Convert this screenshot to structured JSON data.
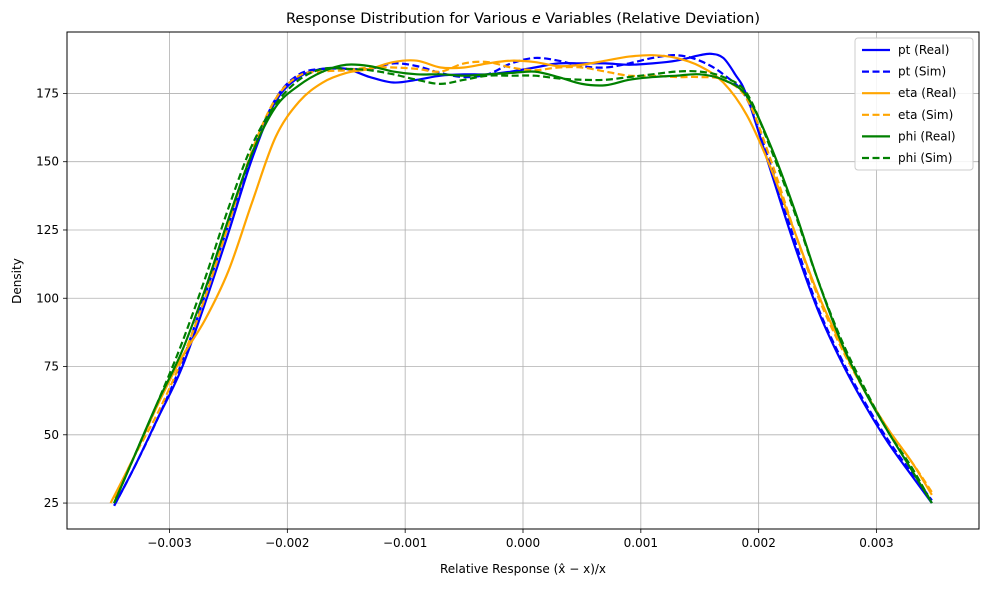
{
  "chart_data": {
    "type": "line",
    "title": "Response Distribution for Various $e$ Variables (Relative Deviation)",
    "title_prefix": "Response Distribution for Various ",
    "title_var": "e",
    "title_suffix": " Variables (Relative Deviation)",
    "xlabel": "Relative Response (x̂ − x)/x",
    "ylabel": "Density",
    "xlim": [
      -0.00387,
      0.00387
    ],
    "ylim": [
      15.5,
      197.5
    ],
    "xticks": [
      -0.003,
      -0.002,
      -0.001,
      0.0,
      0.001,
      0.002,
      0.003
    ],
    "xtick_labels": [
      "−0.003",
      "−0.002",
      "−0.001",
      "0.000",
      "0.001",
      "0.002",
      "0.003"
    ],
    "yticks": [
      25,
      50,
      75,
      100,
      125,
      150,
      175
    ],
    "ytick_labels": [
      "25",
      "50",
      "75",
      "100",
      "125",
      "150",
      "175"
    ],
    "grid": true,
    "legend_position": "top-right",
    "series": [
      {
        "name": "pt (Real)",
        "color": "#0000ff",
        "style": "solid",
        "x": [
          -0.00347,
          -0.0033,
          -0.0031,
          -0.0029,
          -0.0027,
          -0.0025,
          -0.0023,
          -0.0021,
          -0.0019,
          -0.0017,
          -0.0015,
          -0.0013,
          -0.0011,
          -0.0009,
          -0.0007,
          -0.0005,
          -0.0003,
          -0.0001,
          0.0001,
          0.0003,
          0.0005,
          0.0007,
          0.0009,
          0.0011,
          0.0013,
          0.0015,
          0.0016,
          0.0017,
          0.0018,
          0.0019,
          0.0021,
          0.0023,
          0.0025,
          0.0027,
          0.0029,
          0.0031,
          0.0033,
          0.00347
        ],
        "y": [
          24,
          38,
          56,
          74,
          98,
          124,
          151,
          172,
          181,
          184,
          184,
          181,
          179,
          180,
          181.5,
          182,
          182,
          183,
          184.5,
          186,
          186,
          186,
          185.5,
          186,
          187,
          189,
          189.5,
          188,
          182,
          174,
          147,
          120,
          96,
          77,
          61,
          47,
          35,
          25
        ]
      },
      {
        "name": "pt (Sim)",
        "color": "#0000ff",
        "style": "dashed",
        "x": [
          -0.00347,
          -0.0033,
          -0.0031,
          -0.0029,
          -0.0027,
          -0.0025,
          -0.0023,
          -0.0021,
          -0.0019,
          -0.0017,
          -0.0015,
          -0.0013,
          -0.0011,
          -0.0009,
          -0.0007,
          -0.0005,
          -0.0003,
          -0.0001,
          0.0001,
          0.0003,
          0.0005,
          0.0007,
          0.0009,
          0.0011,
          0.0013,
          0.0015,
          0.0017,
          0.0019,
          0.0021,
          0.0023,
          0.0025,
          0.0027,
          0.0029,
          0.0031,
          0.0033,
          0.00347
        ],
        "y": [
          24,
          38,
          56,
          76,
          101,
          127,
          153,
          173,
          182,
          184,
          184,
          184,
          186,
          185,
          182.5,
          181,
          182,
          186,
          188,
          187,
          185,
          184.5,
          186,
          188,
          189,
          187,
          182,
          173,
          149,
          122,
          97,
          78,
          62,
          48,
          36,
          26
        ]
      },
      {
        "name": "eta (Real)",
        "color": "#ffa500",
        "style": "solid",
        "x": [
          -0.0035,
          -0.0033,
          -0.0031,
          -0.0029,
          -0.0027,
          -0.0025,
          -0.0023,
          -0.0021,
          -0.0019,
          -0.0017,
          -0.0015,
          -0.0013,
          -0.0011,
          -0.0009,
          -0.0007,
          -0.0005,
          -0.0003,
          -0.0001,
          0.0001,
          0.0003,
          0.0005,
          0.0007,
          0.0009,
          0.0011,
          0.0013,
          0.0015,
          0.0017,
          0.0019,
          0.0021,
          0.0023,
          0.0025,
          0.0027,
          0.0029,
          0.0031,
          0.0033,
          0.00347
        ],
        "y": [
          25,
          42,
          61,
          78,
          92,
          110,
          135,
          159,
          172,
          179,
          182.5,
          184,
          186.5,
          187,
          184.5,
          184.5,
          186,
          187,
          186.5,
          185,
          185.5,
          187,
          188.5,
          189,
          188,
          185,
          179,
          167,
          148,
          125,
          102,
          83,
          66,
          52,
          40,
          28
        ]
      },
      {
        "name": "eta (Sim)",
        "color": "#ffa500",
        "style": "dashed",
        "x": [
          -0.00347,
          -0.0033,
          -0.0031,
          -0.0029,
          -0.0027,
          -0.0025,
          -0.0023,
          -0.0021,
          -0.0019,
          -0.0017,
          -0.0015,
          -0.0013,
          -0.0011,
          -0.0009,
          -0.0007,
          -0.0005,
          -0.0003,
          -0.0001,
          0.0001,
          0.0003,
          0.0005,
          0.0007,
          0.0009,
          0.0011,
          0.0013,
          0.0015,
          0.0017,
          0.0019,
          0.0021,
          0.0023,
          0.0025,
          0.0027,
          0.0029,
          0.0031,
          0.0033,
          0.00347
        ],
        "y": [
          27,
          42,
          58,
          77,
          100,
          127,
          154,
          173,
          181.5,
          183,
          183.5,
          184.5,
          184.5,
          184,
          183,
          186,
          186.5,
          184.5,
          183.5,
          184.5,
          184.5,
          183,
          181.5,
          181.5,
          181,
          181,
          180,
          173,
          151,
          125,
          101,
          82,
          66,
          52,
          40,
          29
        ]
      },
      {
        "name": "phi (Real)",
        "color": "#008000",
        "style": "solid",
        "x": [
          -0.00347,
          -0.0033,
          -0.0031,
          -0.0029,
          -0.0027,
          -0.0025,
          -0.0023,
          -0.0021,
          -0.0019,
          -0.0017,
          -0.0015,
          -0.0013,
          -0.0011,
          -0.0009,
          -0.0007,
          -0.0005,
          -0.0003,
          -0.0001,
          0.0001,
          0.0003,
          0.0005,
          0.0007,
          0.0009,
          0.0011,
          0.0013,
          0.0015,
          0.0017,
          0.0019,
          0.0021,
          0.0023,
          0.0025,
          0.0027,
          0.0029,
          0.0031,
          0.0033,
          0.00347
        ],
        "y": [
          25,
          42,
          62,
          80,
          103,
          129,
          153,
          170,
          178,
          183,
          185.5,
          185,
          183,
          182,
          182,
          181.5,
          182,
          182.5,
          183,
          181,
          178.5,
          178,
          180,
          181,
          181.5,
          182,
          180,
          174,
          156,
          133,
          107,
          84,
          66,
          51,
          37,
          25
        ]
      },
      {
        "name": "phi (Sim)",
        "color": "#008000",
        "style": "dashed",
        "x": [
          -0.00347,
          -0.0033,
          -0.0031,
          -0.0029,
          -0.0027,
          -0.0025,
          -0.0023,
          -0.0021,
          -0.0019,
          -0.0017,
          -0.0015,
          -0.0013,
          -0.0011,
          -0.0009,
          -0.0007,
          -0.0005,
          -0.0003,
          -0.0001,
          0.0001,
          0.0003,
          0.0005,
          0.0007,
          0.0009,
          0.0011,
          0.0013,
          0.0015,
          0.0017,
          0.0019,
          0.0021,
          0.0023,
          0.0025,
          0.0027,
          0.0029,
          0.0031,
          0.0033,
          0.00347
        ],
        "y": [
          25,
          42,
          62,
          83,
          107,
          133,
          156,
          171,
          180,
          184,
          184,
          183.5,
          182,
          180,
          178.5,
          180,
          181.5,
          181.5,
          181.5,
          180.5,
          180,
          180,
          181,
          182,
          183,
          183,
          181,
          175,
          155,
          132,
          107,
          85,
          67,
          51,
          38,
          25
        ]
      }
    ]
  }
}
